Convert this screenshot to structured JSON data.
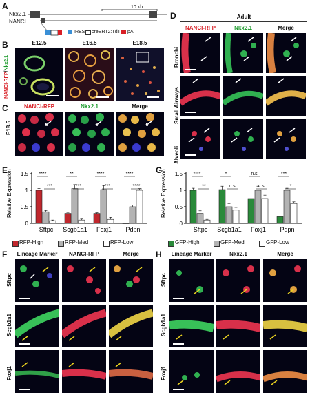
{
  "panels": {
    "A": "A",
    "B": "B",
    "C": "C",
    "D": "D",
    "E": "E",
    "F": "F",
    "G": "G",
    "H": "H"
  },
  "panelA": {
    "gene_top": "Nkx2.1",
    "gene_bottom": "NANCI",
    "scale": "10 kb",
    "legend": [
      "IRES",
      "creERT2:TdT",
      "pA"
    ],
    "legend_colors": [
      "#3a8fd6",
      "#ffffff",
      "#d81f26"
    ]
  },
  "panelB": {
    "stages": [
      "E12.5",
      "E16.5",
      "E18.5"
    ],
    "side_label_red": "NANCI-RFP",
    "side_label_sep": "/",
    "side_label_green": "Nkx2.1"
  },
  "panelC": {
    "headers": [
      "NANCI-RFP",
      "Nkx2.1",
      "Merge"
    ],
    "row_label": "E18.5"
  },
  "panelD": {
    "title": "Adult",
    "headers": [
      "NANCI-RFP",
      "Nkx2.1",
      "Merge"
    ],
    "rows": [
      "Bronchi",
      "Small Airways",
      "Alveoli"
    ]
  },
  "panelE": {
    "ylabel": "Relative Expression",
    "legend": [
      "RFP-High",
      "RFP-Med",
      "RFP-Low"
    ],
    "colors": [
      "#c0272d",
      "#b3b3b3",
      "#ffffff"
    ],
    "sig": [
      [
        "****",
        "***"
      ],
      [
        "**",
        "***"
      ],
      [
        "****",
        "***"
      ],
      [
        "****",
        "****"
      ]
    ]
  },
  "panelG": {
    "ylabel": "Relative Expression",
    "legend": [
      "GFP-High",
      "GFP-Med",
      "GFP-Low"
    ],
    "colors": [
      "#2a8a3a",
      "#b3b3b3",
      "#ffffff"
    ],
    "sig": [
      [
        "****",
        "**"
      ],
      [
        "*",
        "n.s."
      ],
      [
        "n.s.",
        "n.s."
      ],
      [
        "***",
        "*"
      ]
    ]
  },
  "panelF": {
    "headers": [
      "Lineage Marker",
      "NANCI-RFP",
      "Merge"
    ],
    "rows": [
      "Sftpc",
      "Scgb1a1",
      "Foxj1"
    ]
  },
  "panelH": {
    "headers": [
      "Lineage Marker",
      "Nkx2.1",
      "Merge"
    ],
    "rows": [
      "Sftpc",
      "Scgb1a1",
      "Foxj1"
    ]
  },
  "chart_data": [
    {
      "type": "bar",
      "panel": "E",
      "categories": [
        "Sftpc",
        "Scgb1a1",
        "Foxj1",
        "Pdpn"
      ],
      "series": [
        {
          "name": "RFP-High",
          "values": [
            1.0,
            0.3,
            0.3,
            0.0
          ]
        },
        {
          "name": "RFP-Med",
          "values": [
            0.35,
            1.05,
            1.02,
            0.5
          ]
        },
        {
          "name": "RFP-Low",
          "values": [
            0.08,
            0.1,
            0.12,
            1.0
          ]
        }
      ],
      "errors": [
        [
          0.05,
          0.03,
          0.02,
          0.0
        ],
        [
          0.04,
          0.12,
          0.12,
          0.05
        ],
        [
          0.02,
          0.03,
          0.06,
          0.05
        ]
      ],
      "ylabel": "Relative Expression",
      "ylim": [
        0,
        1.5
      ],
      "yticks": [
        "0",
        "0.5",
        "1",
        "1.5"
      ],
      "yticks_v": [
        0,
        0.5,
        1,
        1.5
      ]
    },
    {
      "type": "bar",
      "panel": "G",
      "categories": [
        "Sftpc",
        "Scgb1a1",
        "Foxj1",
        "Pdpn"
      ],
      "series": [
        {
          "name": "GFP-High",
          "values": [
            1.0,
            1.02,
            0.75,
            0.2
          ]
        },
        {
          "name": "GFP-Med",
          "values": [
            0.3,
            0.5,
            1.0,
            1.0
          ]
        },
        {
          "name": "GFP-Low",
          "values": [
            0.1,
            0.4,
            0.75,
            0.6
          ]
        }
      ],
      "errors": [
        [
          0.06,
          0.1,
          0.2,
          0.08
        ],
        [
          0.08,
          0.1,
          0.12,
          0.06
        ],
        [
          0.02,
          0.08,
          0.1,
          0.05
        ]
      ],
      "ylabel": "Relative Expression",
      "ylim": [
        0,
        1.5
      ],
      "yticks": [
        "0",
        "0.5",
        "1",
        "1.5"
      ],
      "yticks_v": [
        0,
        0.5,
        1,
        1.5
      ]
    }
  ]
}
